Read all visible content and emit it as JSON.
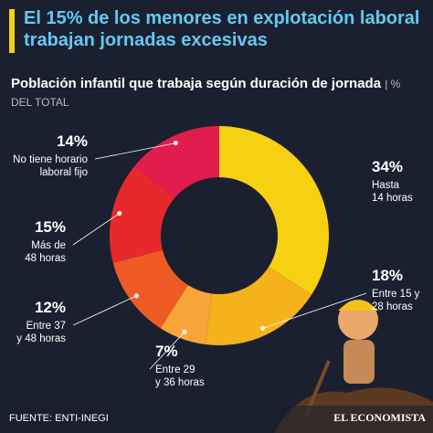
{
  "title": "El 15% de los menores en explotación laboral trabajan jornadas excesivas",
  "source": "FUENTE: ENTI-INEGI",
  "brand": "EL ECONOMISTA",
  "chart_data": {
    "type": "pie",
    "subtitle": "Población infantil que trabaja según duración de jornada",
    "unit": "| % DEL TOTAL",
    "categories": [
      "Hasta\n14 horas",
      "Entre 15 y\n28 horas",
      "Entre 29\ny 36 horas",
      "Entre 37\ny 48 horas",
      "Más de\n48 horas",
      "No tiene horario\nlaboral fijo"
    ],
    "values": [
      34,
      18,
      7,
      12,
      15,
      14
    ],
    "value_labels": [
      "34%",
      "18%",
      "7%",
      "12%",
      "15%",
      "14%"
    ],
    "colors": [
      "#f8d012",
      "#f5b21b",
      "#f7a438",
      "#ee5b25",
      "#e8292c",
      "#e21d4e"
    ]
  }
}
